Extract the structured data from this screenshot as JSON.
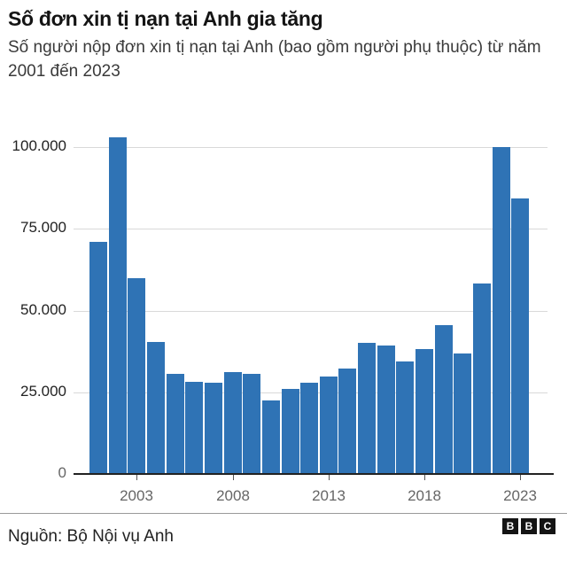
{
  "header": {
    "title": "Số đơn xin tị nạn tại Anh gia tăng",
    "subtitle": "Số người nộp đơn xin tị nạn tại Anh (bao gồm người phụ thuộc) từ năm 2001 đến 2023"
  },
  "footer": {
    "source": "Nguồn: Bộ Nội vụ Anh",
    "logo_letters": [
      "B",
      "B",
      "C"
    ]
  },
  "colors": {
    "bar": "#2f73b5",
    "grid": "#d9d9d9",
    "axis": "#222222"
  },
  "y_ticks": [
    {
      "value": 100000,
      "label": "100.000"
    },
    {
      "value": 75000,
      "label": "75.000"
    },
    {
      "value": 50000,
      "label": "50.000"
    },
    {
      "value": 25000,
      "label": "25.000"
    },
    {
      "value": 0,
      "label": "0"
    }
  ],
  "x_ticks": [
    {
      "year": 2003,
      "label": "2003"
    },
    {
      "year": 2008,
      "label": "2008"
    },
    {
      "year": 2013,
      "label": "2013"
    },
    {
      "year": 2018,
      "label": "2018"
    },
    {
      "year": 2023,
      "label": "2023"
    }
  ],
  "chart_data": {
    "type": "bar",
    "title": "Số đơn xin tị nạn tại Anh gia tăng",
    "subtitle": "Số người nộp đơn xin tị nạn tại Anh (bao gồm người phụ thuộc) từ năm 2001 đến 2023",
    "xlabel": "",
    "ylabel": "",
    "categories": [
      2001,
      2002,
      2003,
      2004,
      2005,
      2006,
      2007,
      2008,
      2009,
      2010,
      2011,
      2012,
      2013,
      2014,
      2015,
      2016,
      2017,
      2018,
      2019,
      2020,
      2021,
      2022,
      2023
    ],
    "values": [
      71000,
      103000,
      60000,
      40400,
      30600,
      28200,
      28000,
      31200,
      30600,
      22600,
      25900,
      28000,
      29900,
      32300,
      40000,
      39300,
      34400,
      38300,
      45500,
      36900,
      58400,
      99900,
      84400
    ],
    "ylim": [
      0,
      100000
    ],
    "y_tick_labels": [
      "0",
      "25.000",
      "50.000",
      "75.000",
      "100.000"
    ],
    "x_tick_labels": [
      "2003",
      "2008",
      "2013",
      "2018",
      "2023"
    ],
    "grid": true,
    "legend": "none",
    "source": "Nguồn: Bộ Nội vụ Anh"
  }
}
